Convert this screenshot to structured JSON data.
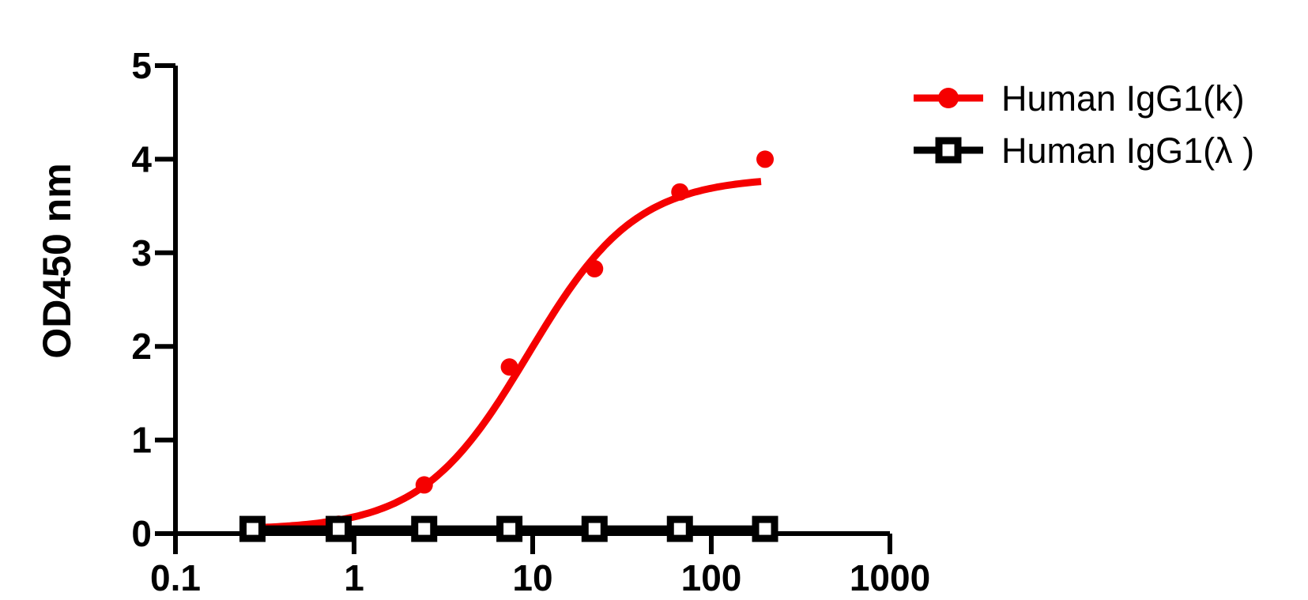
{
  "figure": {
    "background": "#ffffff",
    "axis_color": "#000000"
  },
  "chart_data": {
    "type": "scatter",
    "title": "",
    "xlabel": "",
    "ylabel": "OD450 nm",
    "x_scale": "log10",
    "xlim": [
      0.1,
      1000
    ],
    "ylim": [
      0,
      5
    ],
    "grid": false,
    "legend_position": "top-right",
    "x_ticks": [
      {
        "value": 0.1,
        "label": "0.1"
      },
      {
        "value": 1,
        "label": "1"
      },
      {
        "value": 10,
        "label": "10"
      },
      {
        "value": 100,
        "label": "100"
      },
      {
        "value": 1000,
        "label": "1000"
      }
    ],
    "y_ticks": [
      {
        "value": 0,
        "label": "0"
      },
      {
        "value": 1,
        "label": "1"
      },
      {
        "value": 2,
        "label": "2"
      },
      {
        "value": 3,
        "label": "3"
      },
      {
        "value": 4,
        "label": "4"
      },
      {
        "value": 5,
        "label": "5"
      }
    ],
    "x": [
      0.27,
      0.82,
      2.47,
      7.41,
      22.2,
      66.7,
      200
    ],
    "series": [
      {
        "name": "Human IgG1(k)",
        "color": "#f50000",
        "marker": "filled-circle",
        "values": [
          0.05,
          0.1,
          0.52,
          1.78,
          2.83,
          3.65,
          4.0
        ],
        "fit_curve": {
          "model": "4PL",
          "bottom": 0.04,
          "top": 3.81,
          "ec50": 9.5,
          "hill": 1.45,
          "x_start": 0.27,
          "x_end": 190
        }
      },
      {
        "name": "Human IgG1(λ )",
        "color": "#000000",
        "marker": "open-square",
        "values": [
          0.05,
          0.05,
          0.05,
          0.05,
          0.05,
          0.05,
          0.05
        ],
        "fit_curve": {
          "model": "flat",
          "value": 0.05,
          "x_start": 0.27,
          "x_end": 200
        }
      }
    ]
  }
}
